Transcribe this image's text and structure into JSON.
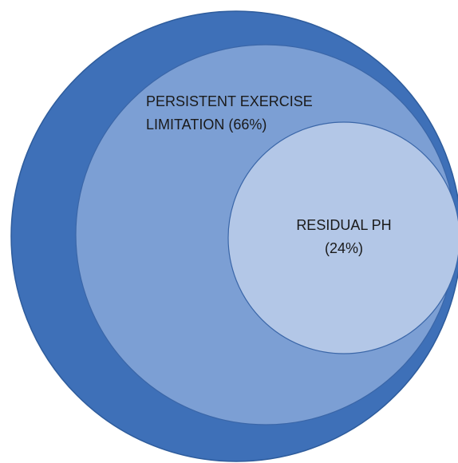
{
  "circles": [
    {
      "lines": [
        "PERSISTENT EXERCISE",
        "LIMITATION (66%)"
      ]
    },
    {
      "lines": [
        "RESIDUAL PH",
        "(24%)"
      ]
    }
  ]
}
